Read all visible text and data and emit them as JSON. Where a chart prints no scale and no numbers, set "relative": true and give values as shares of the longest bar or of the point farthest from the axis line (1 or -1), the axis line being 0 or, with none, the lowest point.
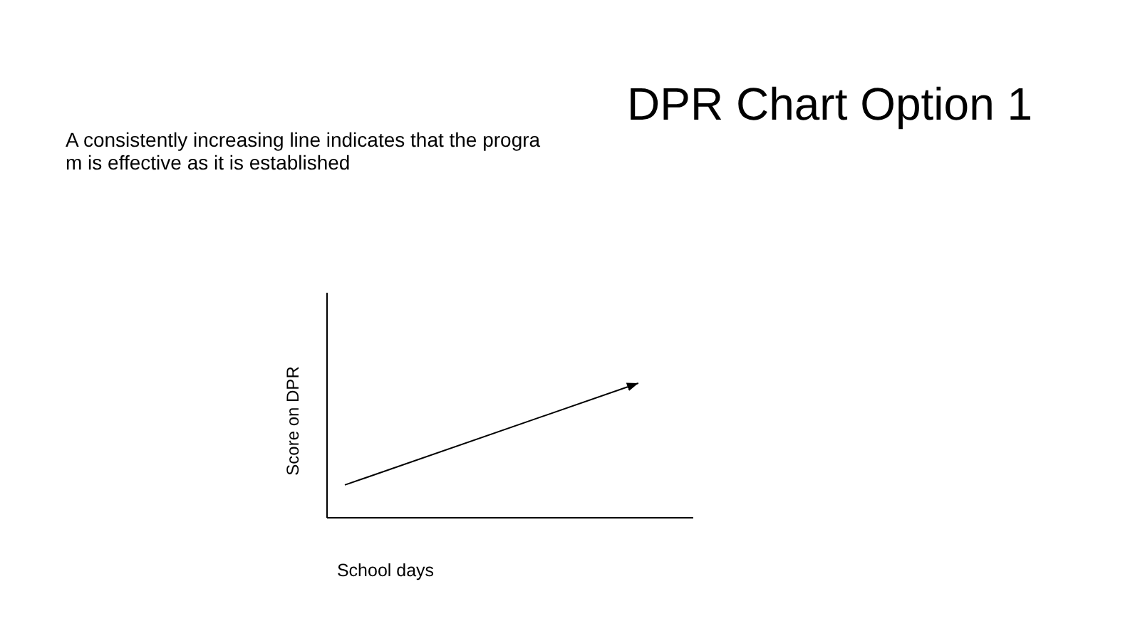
{
  "chart_data": {
    "type": "line",
    "title": "DPR Chart Option 1",
    "subtitle": "A consistently increasing line indicates that the progra\nm is effective as it is established",
    "xlabel": "School days",
    "ylabel": "Score on DPR",
    "categories": [
      null,
      null
    ],
    "relative": true,
    "series": [
      {
        "color": "#000000",
        "values": [
          0.24,
          1
        ]
      }
    ]
  }
}
